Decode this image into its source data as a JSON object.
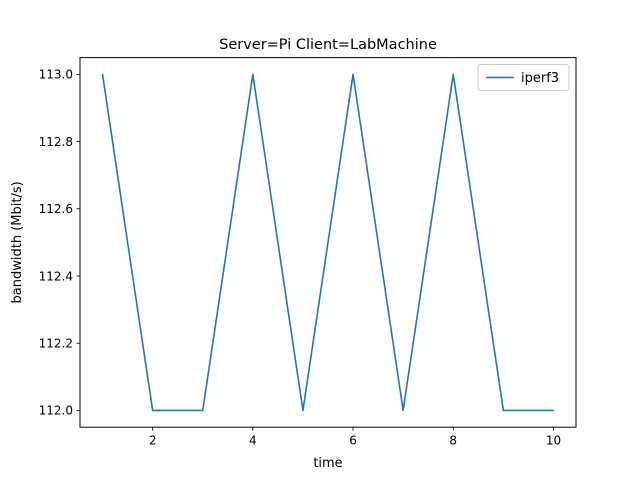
{
  "chart_data": {
    "type": "line",
    "title": "Server=Pi Client=LabMachine",
    "xlabel": "time",
    "ylabel": "bandwidth (Mbit/s)",
    "xlim": [
      0.55,
      10.45
    ],
    "ylim": [
      111.95,
      113.05
    ],
    "xticks": [
      2,
      4,
      6,
      8,
      10
    ],
    "xtick_labels": [
      "2",
      "4",
      "6",
      "8",
      "10"
    ],
    "yticks": [
      112.0,
      112.2,
      112.4,
      112.6,
      112.8,
      113.0
    ],
    "ytick_labels": [
      "112.0",
      "112.2",
      "112.4",
      "112.6",
      "112.8",
      "113.0"
    ],
    "grid": false,
    "legend_position": "upper right",
    "series": [
      {
        "name": "iperf3",
        "color": "#1f77b4",
        "x": [
          1,
          2,
          3,
          4,
          5,
          6,
          7,
          8,
          9,
          10
        ],
        "y": [
          113.0,
          112.0,
          112.0,
          113.0,
          112.0,
          113.0,
          112.0,
          113.0,
          112.0,
          112.0
        ]
      }
    ]
  }
}
